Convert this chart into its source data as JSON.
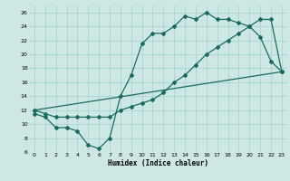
{
  "background_color": "#cde8e4",
  "grid_color": "#aad4d0",
  "line_color": "#1a6b5e",
  "xlabel": "Humidex (Indice chaleur)",
  "xlim": [
    -0.5,
    23.5
  ],
  "ylim": [
    6,
    27
  ],
  "xticks": [
    0,
    1,
    2,
    3,
    4,
    5,
    6,
    7,
    8,
    9,
    10,
    11,
    12,
    13,
    14,
    15,
    16,
    17,
    18,
    19,
    20,
    21,
    22,
    23
  ],
  "yticks": [
    6,
    8,
    10,
    12,
    14,
    16,
    18,
    20,
    22,
    24,
    26
  ],
  "line1_x": [
    0,
    1,
    2,
    3,
    4,
    5,
    6,
    7,
    8,
    9,
    10,
    11,
    12,
    13,
    14,
    15,
    16,
    17,
    18,
    19,
    20,
    21,
    22,
    23
  ],
  "line1_y": [
    11.5,
    11,
    9.5,
    9.5,
    9,
    7,
    6.5,
    8,
    14,
    17,
    21.5,
    23,
    23,
    24,
    25.5,
    25,
    26,
    25,
    25,
    24.5,
    24,
    22.5,
    19,
    17.5
  ],
  "line2_x": [
    0,
    1,
    2,
    3,
    4,
    5,
    6,
    7,
    8,
    9,
    10,
    11,
    12,
    13,
    14,
    15,
    16,
    17,
    18,
    19,
    20,
    21,
    22,
    23
  ],
  "line2_y": [
    12,
    11.5,
    11,
    11,
    11,
    11,
    11,
    11,
    12,
    12.5,
    13,
    13.5,
    14.5,
    16,
    17,
    18.5,
    20,
    21,
    22,
    23,
    24,
    25,
    25,
    17.5
  ],
  "line3_x": [
    0,
    23
  ],
  "line3_y": [
    12,
    17.5
  ]
}
